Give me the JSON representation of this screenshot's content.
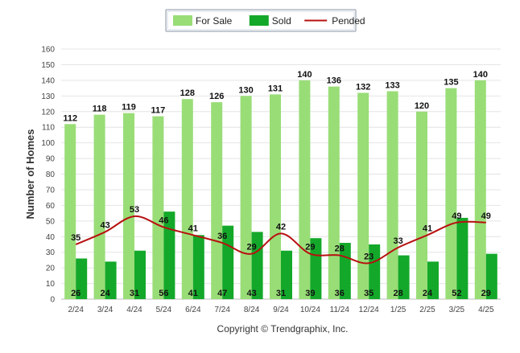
{
  "chart_data": {
    "type": "bar",
    "categories": [
      "2/24",
      "3/24",
      "4/24",
      "5/24",
      "6/24",
      "7/24",
      "8/24",
      "9/24",
      "10/24",
      "11/24",
      "12/24",
      "1/25",
      "2/25",
      "3/25",
      "4/25"
    ],
    "series": [
      {
        "name": "For Sale",
        "type": "bar",
        "color": "#99dd77",
        "values": [
          112,
          118,
          119,
          117,
          128,
          126,
          130,
          131,
          140,
          136,
          132,
          133,
          120,
          135,
          140
        ]
      },
      {
        "name": "Sold",
        "type": "bar",
        "color": "#13a829",
        "values": [
          26,
          24,
          31,
          56,
          41,
          47,
          43,
          31,
          39,
          36,
          35,
          28,
          24,
          52,
          29
        ]
      },
      {
        "name": "Pended",
        "type": "line",
        "color": "#b81010",
        "values": [
          35,
          43,
          53,
          46,
          41,
          36,
          29,
          42,
          29,
          28,
          23,
          33,
          41,
          49,
          49
        ]
      }
    ],
    "ylabel": "Number of Homes",
    "ylim": [
      0,
      160
    ],
    "yticks": [
      0,
      10,
      20,
      30,
      40,
      50,
      60,
      70,
      80,
      90,
      100,
      110,
      120,
      130,
      140,
      150,
      160
    ],
    "grid": true,
    "legend_position": "top-center"
  },
  "copyright": "Copyright © Trendgraphix, Inc."
}
